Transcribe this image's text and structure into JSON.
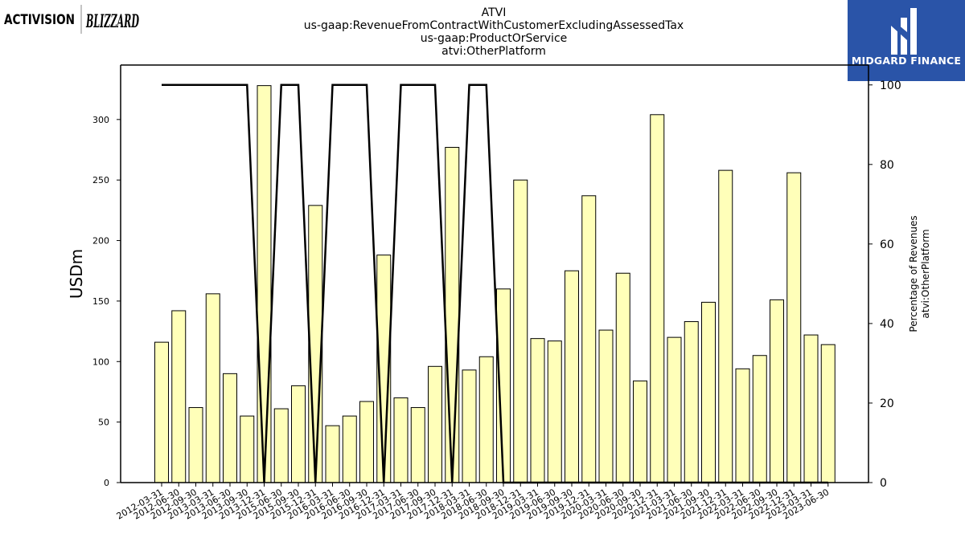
{
  "header": {
    "title_lines": [
      "ATVI",
      "us-gaap:RevenueFromContractWithCustomerExcludingAssessedTax",
      "us-gaap:ProductOrService",
      "atvi:OtherPlatform"
    ]
  },
  "logos": {
    "left_text": [
      "ACTIVISION",
      "BLIZZARD"
    ],
    "right_text": "MIDGARD FINANCE",
    "right_bg_color": "#2a54a8"
  },
  "chart_data": {
    "type": "bar",
    "ylabel": "USDm",
    "y2label_lines": [
      "Percentage of Revenues",
      "atvi:OtherPlatform"
    ],
    "ylim": [
      0,
      345
    ],
    "y2lim": [
      0,
      105
    ],
    "yticks": [
      0,
      50,
      100,
      150,
      200,
      250,
      300
    ],
    "y2ticks": [
      0,
      20,
      40,
      60,
      80,
      100
    ],
    "bar_color": "#ffffb9",
    "line_color": "#000000",
    "categories": [
      "2012-03-31",
      "2012-06-30",
      "2012-09-30",
      "2013-03-31",
      "2013-06-30",
      "2013-09-30",
      "2013-12-31",
      "2015-06-30",
      "2015-09-30",
      "2015-12-31",
      "2016-03-31",
      "2016-06-30",
      "2016-09-30",
      "2016-12-31",
      "2017-03-31",
      "2017-06-30",
      "2017-09-30",
      "2017-12-31",
      "2018-03-31",
      "2018-06-30",
      "2018-09-30",
      "2018-12-31",
      "2019-03-31",
      "2019-06-30",
      "2019-09-30",
      "2019-12-31",
      "2020-03-31",
      "2020-06-30",
      "2020-09-30",
      "2020-12-31",
      "2021-03-31",
      "2021-06-30",
      "2021-09-30",
      "2021-12-31",
      "2022-03-31",
      "2022-06-30",
      "2022-09-30",
      "2022-12-31",
      "2023-03-31",
      "2023-06-30"
    ],
    "series": [
      {
        "type": "bar",
        "axis": "left",
        "values": [
          116,
          142,
          62,
          156,
          90,
          55,
          328,
          61,
          80,
          229,
          47,
          55,
          67,
          188,
          70,
          62,
          96,
          277,
          93,
          104,
          160,
          250,
          119,
          117,
          175,
          237,
          126,
          173,
          84,
          304,
          120,
          133,
          149,
          258,
          94,
          105,
          151,
          256,
          122,
          114
        ]
      },
      {
        "type": "line",
        "axis": "right",
        "values": [
          100,
          100,
          100,
          100,
          100,
          100,
          0,
          100,
          100,
          0,
          100,
          100,
          100,
          0,
          100,
          100,
          100,
          0,
          100,
          100,
          0,
          0,
          0,
          0,
          0,
          0,
          0,
          0,
          0,
          0,
          0,
          0,
          0,
          0,
          0,
          0,
          0,
          0,
          0,
          0
        ]
      }
    ]
  }
}
